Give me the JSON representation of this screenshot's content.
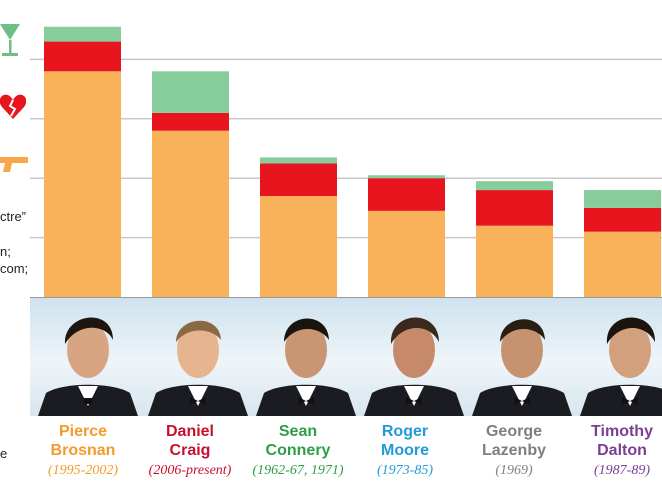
{
  "chart_data": {
    "type": "bar",
    "stacked": true,
    "categories": [
      "Pierce Brosnan",
      "Daniel Craig",
      "Sean Connery",
      "Roger Moore",
      "George Lazenby",
      "Timothy Dalton"
    ],
    "series": [
      {
        "name": "Kills",
        "color": "#f9b15a",
        "values": [
          76,
          56,
          34,
          29,
          24,
          22
        ]
      },
      {
        "name": "Lovers",
        "color": "#e8141e",
        "values": [
          10,
          6,
          11,
          11,
          12,
          8
        ]
      },
      {
        "name": "Drinks",
        "color": "#86cd9b",
        "values": [
          5,
          14,
          2,
          1,
          3,
          6
        ]
      }
    ],
    "ylim": [
      0,
      100
    ],
    "gridlines": [
      20,
      40,
      60,
      80
    ],
    "grid": true
  },
  "legend_icons": [
    "martini-icon",
    "broken-heart-icon",
    "gun-icon"
  ],
  "clipped_text": [
    "ctre”",
    "n;",
    "com;",
    "e"
  ],
  "actors": [
    {
      "name_line1": "Pierce",
      "name_line2": "Brosnan",
      "years": "(1995-2002)",
      "color": "#f39a2b"
    },
    {
      "name_line1": "Daniel",
      "name_line2": "Craig",
      "years": "(2006-present)",
      "color": "#c8102e"
    },
    {
      "name_line1": "Sean",
      "name_line2": "Connery",
      "years": "(1962-67, 1971)",
      "color": "#2e9e48"
    },
    {
      "name_line1": "Roger",
      "name_line2": "Moore",
      "years": "(1973-85)",
      "color": "#1f9bd7"
    },
    {
      "name_line1": "George",
      "name_line2": "Lazenby",
      "years": "(1969)",
      "color": "#7f7f7f"
    },
    {
      "name_line1": "Timothy",
      "name_line2": "Dalton",
      "years": "(1987-89)",
      "color": "#7b3f98"
    }
  ]
}
